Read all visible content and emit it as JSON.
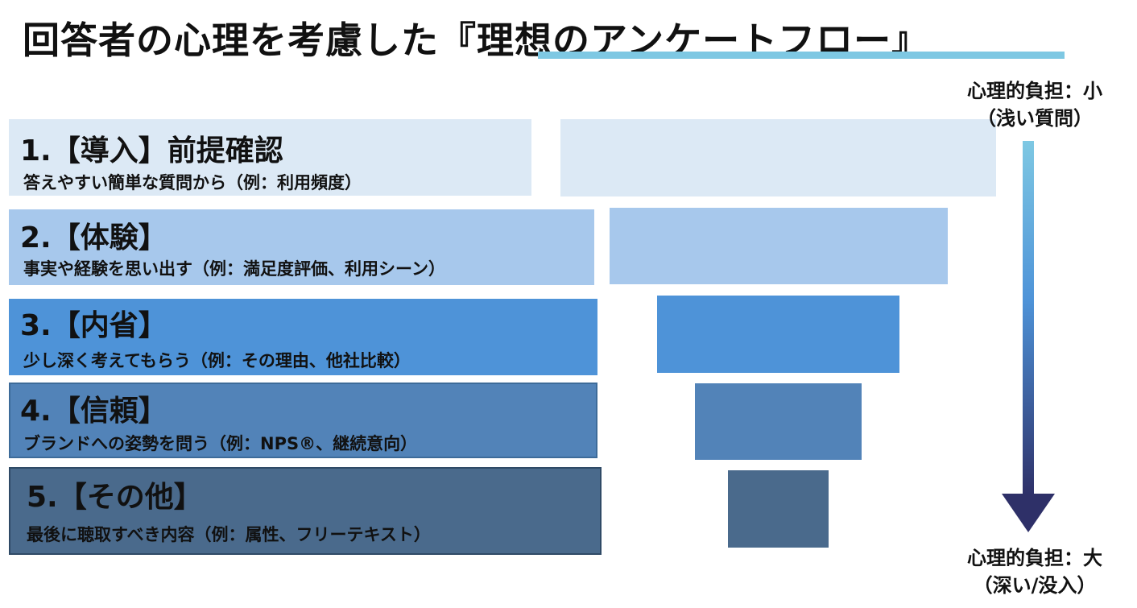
{
  "title": {
    "prefix": "回答者の心理を考慮した",
    "highlight": "『理想のアンケートフロー』"
  },
  "steps": [
    {
      "head": "1.【導入】前提確認",
      "desc": "答えやすい簡単な質問から（例：利用頻度）",
      "color": "#dce9f5"
    },
    {
      "head": "2.【体験】",
      "desc": "事実や経験を思い出す（例：満足度評価、利用シーン）",
      "color": "#a7c8ec"
    },
    {
      "head": "3.【内省】",
      "desc": "少し深く考えてもらう（例：その理由、他社比較）",
      "color": "#4e93d8"
    },
    {
      "head": "4.【信頼】",
      "desc": "ブランドへの姿勢を問う（例：NPS®、継続意向）",
      "color": "#5283b8"
    },
    {
      "head": "5.【その他】",
      "desc": "最後に聴取すべき内容（例：属性、フリーテキスト）",
      "color": "#4a6a8c"
    }
  ],
  "arrow": {
    "top_label": [
      "心理的負担：小",
      "（浅い質問）"
    ],
    "bottom_label": [
      "心理的負担：大",
      "（深い/没入）"
    ],
    "gradient_top": "#7ec8e3",
    "gradient_bottom": "#2e3068"
  }
}
